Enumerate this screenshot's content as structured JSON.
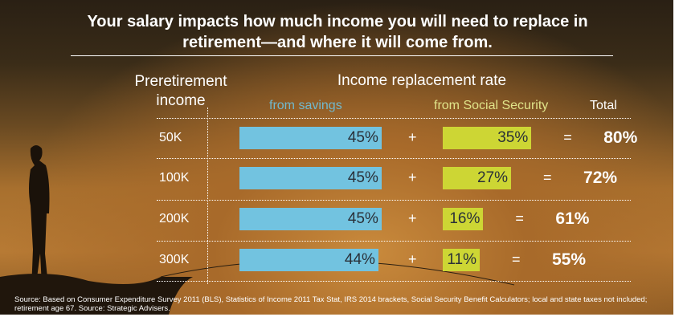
{
  "chart_data": {
    "type": "table",
    "title": "Your salary impacts how much income you will need to replace in retirement—and where it will come from.",
    "headers": {
      "income": "Preretirement income",
      "rate": "Income replacement rate",
      "savings": "from savings",
      "ss": "from Social Security",
      "total": "Total"
    },
    "rows": [
      {
        "income": "50K",
        "savings": 45,
        "ss": 35,
        "total": 80
      },
      {
        "income": "100K",
        "savings": 45,
        "ss": 27,
        "total": 72
      },
      {
        "income": "200K",
        "savings": 45,
        "ss": 16,
        "total": 61
      },
      {
        "income": "300K",
        "savings": 44,
        "ss": 11,
        "total": 55
      }
    ],
    "colors": {
      "savings": "#72c3e0",
      "ss": "#cdd634"
    },
    "plus": "+",
    "equals": "=",
    "source": "Source: Based on Consumer Expenditure Survey 2011 (BLS), Statistics of Income 2011 Tax Stat, IRS 2014 brackets, Social Security Benefit Calculators; local and state taxes not included; retirement age 67. Source: Strategic Advisers."
  }
}
